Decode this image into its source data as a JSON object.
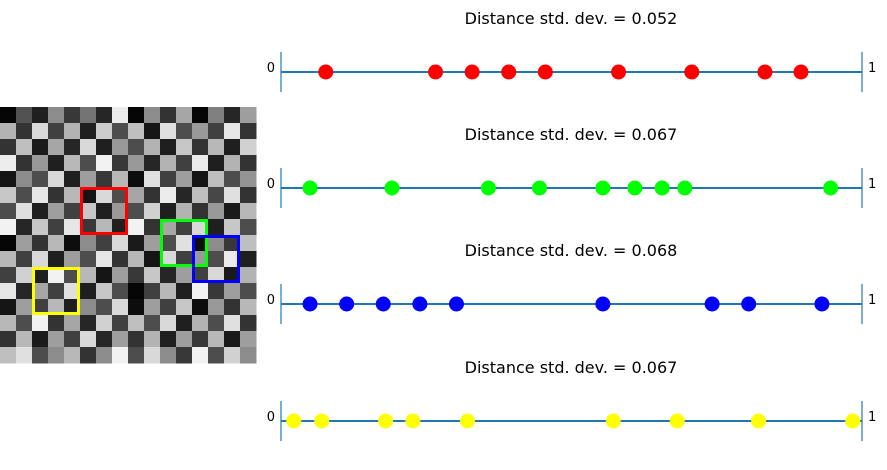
{
  "chart_data": {
    "type": "composite",
    "image_panel": {
      "description": "grayscale checkerboard with colored square outlines",
      "grid": {
        "rows": 16,
        "cols": 16
      },
      "pixels": [
        [
          0.02,
          0.32,
          0.12,
          0.55,
          0.22,
          0.45,
          0.15,
          0.92,
          0.02,
          0.55,
          0.2,
          0.65,
          0.02,
          0.5,
          0.15,
          0.62
        ],
        [
          0.7,
          0.2,
          0.85,
          0.25,
          0.7,
          0.12,
          0.8,
          0.3,
          0.75,
          0.08,
          0.88,
          0.3,
          0.6,
          0.25,
          0.9,
          0.2
        ],
        [
          0.2,
          0.75,
          0.1,
          0.65,
          0.15,
          0.85,
          0.12,
          0.6,
          0.3,
          0.7,
          0.12,
          0.78,
          0.2,
          0.72,
          0.12,
          0.82
        ],
        [
          0.93,
          0.2,
          0.6,
          0.12,
          0.72,
          0.3,
          0.95,
          0.22,
          0.6,
          0.15,
          0.7,
          0.25,
          0.92,
          0.12,
          0.7,
          0.2
        ],
        [
          0.08,
          0.55,
          0.3,
          0.85,
          0.12,
          0.62,
          0.22,
          0.72,
          0.05,
          0.88,
          0.25,
          0.62,
          0.08,
          0.75,
          0.3,
          0.58
        ],
        [
          0.78,
          0.3,
          0.9,
          0.2,
          0.72,
          0.08,
          0.85,
          0.3,
          0.65,
          0.2,
          0.92,
          0.15,
          0.75,
          0.28,
          0.88,
          0.2
        ],
        [
          0.3,
          0.88,
          0.12,
          0.62,
          0.25,
          0.78,
          0.12,
          0.6,
          0.3,
          0.82,
          0.12,
          0.7,
          0.2,
          0.6,
          0.1,
          0.72
        ],
        [
          0.95,
          0.15,
          0.78,
          0.25,
          0.9,
          0.22,
          0.72,
          0.12,
          0.95,
          0.2,
          0.65,
          0.25,
          0.85,
          0.12,
          0.78,
          0.3
        ],
        [
          0.02,
          0.62,
          0.2,
          0.72,
          0.05,
          0.55,
          0.25,
          0.85,
          0.1,
          0.62,
          0.3,
          0.88,
          0.05,
          0.55,
          0.22,
          0.75
        ],
        [
          0.72,
          0.25,
          0.85,
          0.12,
          0.62,
          0.3,
          0.9,
          0.2,
          0.72,
          0.08,
          0.85,
          0.25,
          0.6,
          0.3,
          0.92,
          0.12
        ],
        [
          0.25,
          0.82,
          0.12,
          0.95,
          0.3,
          0.72,
          0.08,
          0.62,
          0.22,
          0.78,
          0.15,
          0.62,
          0.25,
          0.85,
          0.1,
          0.7
        ],
        [
          0.9,
          0.15,
          0.65,
          0.25,
          0.88,
          0.12,
          0.78,
          0.3,
          0.02,
          0.25,
          0.72,
          0.12,
          0.95,
          0.22,
          0.62,
          0.3
        ],
        [
          0.08,
          0.62,
          0.25,
          0.72,
          0.12,
          0.55,
          0.3,
          0.85,
          0.05,
          0.62,
          0.25,
          0.78,
          0.05,
          0.6,
          0.2,
          0.72
        ],
        [
          0.72,
          0.3,
          0.95,
          0.2,
          0.65,
          0.15,
          0.82,
          0.25,
          0.75,
          0.3,
          0.85,
          0.12,
          0.7,
          0.3,
          0.88,
          0.2
        ],
        [
          0.2,
          0.72,
          0.1,
          0.62,
          0.25,
          0.85,
          0.15,
          0.62,
          0.2,
          0.7,
          0.12,
          0.62,
          0.22,
          0.72,
          0.1,
          0.62
        ],
        [
          0.75,
          0.88,
          0.3,
          0.55,
          0.72,
          0.2,
          0.55,
          0.95,
          0.3,
          0.85,
          0.55,
          0.22,
          0.95,
          0.3,
          0.82,
          0.55
        ]
      ],
      "boxes": [
        {
          "color": "#ff0000",
          "row": 5,
          "col": 5,
          "size": 3
        },
        {
          "color": "#00ff00",
          "row": 7,
          "col": 10,
          "size": 3
        },
        {
          "color": "#0000ff",
          "row": 8,
          "col": 12,
          "size": 3
        },
        {
          "color": "#ffff00",
          "row": 10,
          "col": 2,
          "size": 3
        }
      ]
    },
    "strips": [
      {
        "type": "scatter",
        "title": "Distance std. dev. = 0.052",
        "color": "#ff0000",
        "xlim": [
          0,
          1
        ],
        "xtick_labels": [
          "0",
          "1"
        ],
        "x": [
          0.077,
          0.266,
          0.329,
          0.392,
          0.455,
          0.581,
          0.707,
          0.833,
          0.895
        ]
      },
      {
        "type": "scatter",
        "title": "Distance std. dev. = 0.067",
        "color": "#00ff00",
        "xlim": [
          0,
          1
        ],
        "xtick_labels": [
          "0",
          "1"
        ],
        "x": [
          0.05,
          0.191,
          0.357,
          0.445,
          0.554,
          0.609,
          0.656,
          0.695,
          0.946
        ]
      },
      {
        "type": "scatter",
        "title": "Distance std. dev. = 0.068",
        "color": "#0000ff",
        "xlim": [
          0,
          1
        ],
        "xtick_labels": [
          "0",
          "1"
        ],
        "x": [
          0.05,
          0.113,
          0.176,
          0.239,
          0.302,
          0.554,
          0.742,
          0.805,
          0.931
        ]
      },
      {
        "type": "scatter",
        "title": "Distance std. dev. = 0.067",
        "color": "#ffff00",
        "xlim": [
          0,
          1
        ],
        "xtick_labels": [
          "0",
          "1"
        ],
        "x": [
          0.022,
          0.07,
          0.18,
          0.227,
          0.321,
          0.572,
          0.682,
          0.822,
          0.984
        ]
      }
    ]
  }
}
